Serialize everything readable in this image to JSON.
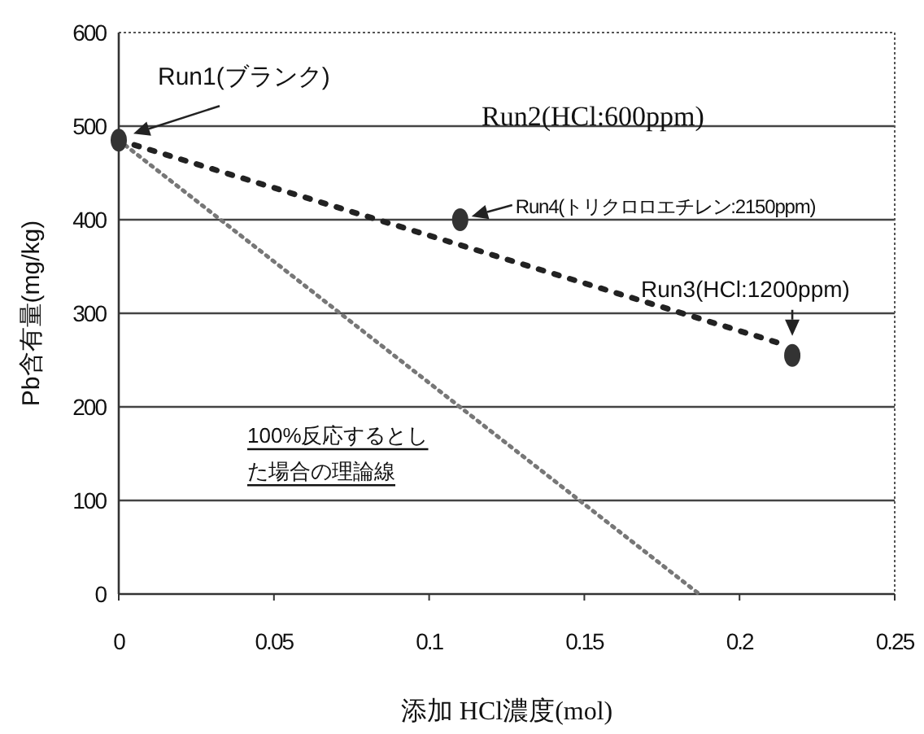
{
  "chart_data": {
    "type": "scatter",
    "xlabel": "添加 HCl濃度(mol)",
    "ylabel": "Pb含有量(mg/kg)",
    "xlim": [
      0,
      0.25
    ],
    "xticks": [
      0,
      0.05,
      0.1,
      0.15,
      0.2,
      0.25
    ],
    "ylim": [
      0,
      600
    ],
    "yticks": [
      0,
      100,
      200,
      300,
      400,
      500,
      600
    ],
    "grid": "y",
    "series": [
      {
        "type": "scatter",
        "color": "#333333",
        "marker": "circle",
        "x": [
          0,
          0.11,
          0.217
        ],
        "values": [
          485,
          400,
          255
        ]
      },
      {
        "type": "line",
        "color": "#222222",
        "line_style": "dashed",
        "marker": "none",
        "x": [
          0,
          0.213
        ],
        "values": [
          485,
          268
        ]
      },
      {
        "type": "line",
        "color": "#777777",
        "line_style": "dotted",
        "marker": "none",
        "x": [
          0,
          0.187
        ],
        "values": [
          485,
          0
        ]
      }
    ],
    "annotations": [
      {
        "text": "Run1(ブランク)",
        "x": 0,
        "y": 485
      },
      "Run2(HCl:600ppm)",
      {
        "text": "Run4(トリクロロエチレン:2150ppm)",
        "x": 0.11,
        "y": 400
      },
      {
        "text": "Run3(HCl:1200ppm)",
        "x": 0.217,
        "y": 255
      },
      "100%反応するとした場合の理論線"
    ]
  }
}
